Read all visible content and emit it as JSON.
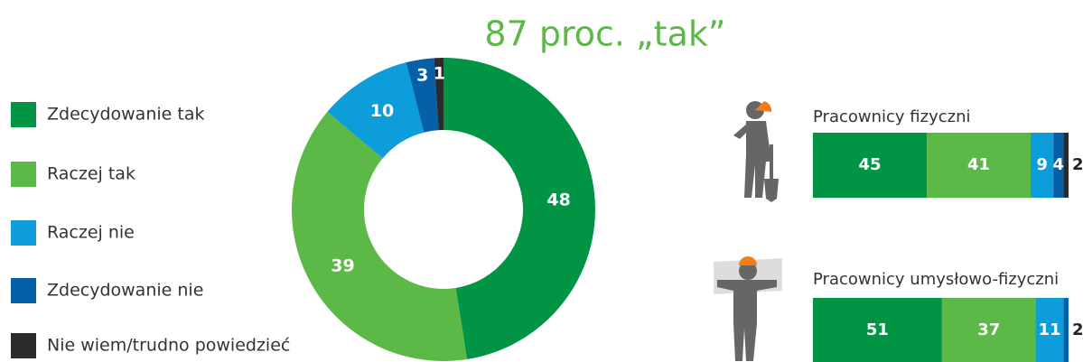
{
  "chart_data": [
    {
      "type": "pie",
      "title": "87 proc. „tak”",
      "categories": [
        "Zdecydowanie tak",
        "Raczej tak",
        "Raczej nie",
        "Zdecydowanie nie",
        "Nie wiem/trudno powiedzieć"
      ],
      "values": [
        48,
        39,
        10,
        3,
        1
      ],
      "colors": [
        "#009444",
        "#5cb847",
        "#0d9ddb",
        "#0560a8",
        "#2b2b2b"
      ]
    },
    {
      "type": "bar",
      "categories": [
        "Pracownicy fizyczni",
        "Pracownicy umysłowo-fizyczni"
      ],
      "series": [
        {
          "values": [
            45,
            51
          ]
        },
        {
          "values": [
            41,
            37
          ]
        },
        {
          "values": [
            9,
            11
          ]
        },
        {
          "values": [
            4,
            2
          ]
        },
        {
          "values": [
            2,
            0
          ]
        }
      ]
    }
  ]
}
